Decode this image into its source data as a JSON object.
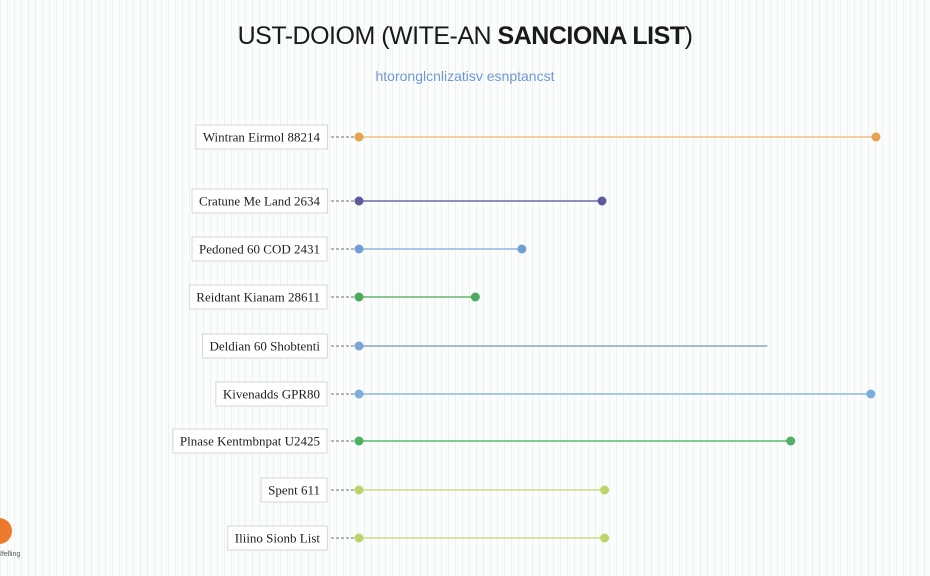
{
  "chart_data": {
    "type": "lollipop",
    "title_regular": "UST-DOIOM (WITE-AN ",
    "title_bold": "SANCIONA LIST",
    "title_end": ")",
    "subtitle": "htoronglcnlizatisv esnptancst",
    "xlim": [
      0,
      100
    ],
    "grid": true,
    "items": [
      {
        "label": "Wintran Eirmol 88214",
        "start": 0,
        "value": 100,
        "color": "#e7a24e",
        "line_color": "#f0c283",
        "end_dot": true
      },
      {
        "label": "Cratune Me Land 2634",
        "start": 0,
        "value": 47,
        "color": "#5d5a9e",
        "line_color": "#6d6aa6",
        "end_dot": true
      },
      {
        "label": "Pedoned 60 COD 2431",
        "start": 0,
        "value": 31.5,
        "color": "#6f9fd8",
        "line_color": "#8db3e0",
        "end_dot": true
      },
      {
        "label": "Reidtant Kianam 28611",
        "start": 0,
        "value": 22.5,
        "color": "#4caa5e",
        "line_color": "#62b872",
        "end_dot": true
      },
      {
        "label": "Deldian 60 Shobtenti",
        "start": 0,
        "value": 79,
        "color": "#7fa3d4",
        "line_color": "#8fa3bd",
        "end_dot": false
      },
      {
        "label": "Kivenadds GPR80",
        "start": 0,
        "value": 99,
        "color": "#7fadd9",
        "line_color": "#8db7e0",
        "end_dot": true
      },
      {
        "label": "Plnase Kentmbnpat U2425",
        "start": 0,
        "value": 83.5,
        "color": "#4faf63",
        "line_color": "#5dba70",
        "end_dot": true
      },
      {
        "label": "Spent 611",
        "start": 0,
        "value": 47.5,
        "color": "#bcd56a",
        "line_color": "#c9dd86",
        "end_dot": true
      },
      {
        "label": "Iliino Sionb List",
        "start": 0,
        "value": 47.5,
        "color": "#bcd56a",
        "line_color": "#c9dd86",
        "end_dot": true
      }
    ]
  },
  "footer": {
    "brand_text": "Ifelling",
    "brand_color": "#ec7a2a"
  }
}
